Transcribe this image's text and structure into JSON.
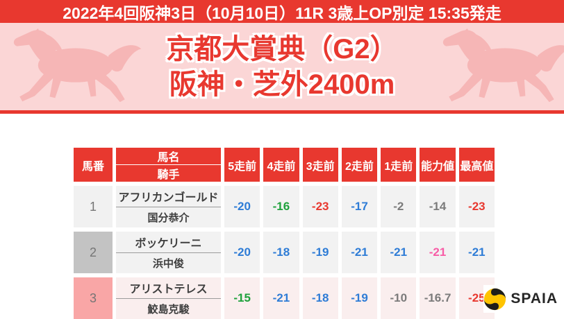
{
  "top_bar": {
    "text": "2022年4回阪神3日（10月10日）11R 3歳上OP別定 15:35発走"
  },
  "header": {
    "title_line1": "京都大賞典（G2）",
    "title_line2": "阪神・芝外2400m"
  },
  "table": {
    "header": {
      "horse_number": "馬番",
      "horse_name": "馬名",
      "jockey": "騎手",
      "run_columns": [
        "5走前",
        "4走前",
        "3走前",
        "2走前",
        "1走前",
        "能力値",
        "最高値"
      ]
    },
    "rows": [
      {
        "number": "1",
        "name": "アフリカンゴールド",
        "jockey": "国分恭介",
        "number_bg": "#f1f1f1",
        "row_bg": "#f2f2f2",
        "values": [
          {
            "v": "-20",
            "c": "blue"
          },
          {
            "v": "-16",
            "c": "green"
          },
          {
            "v": "-23",
            "c": "red"
          },
          {
            "v": "-17",
            "c": "blue"
          },
          {
            "v": "-2",
            "c": "gray"
          },
          {
            "v": "-14",
            "c": "gray"
          },
          {
            "v": "-23",
            "c": "red"
          }
        ]
      },
      {
        "number": "2",
        "name": "ボッケリーニ",
        "jockey": "浜中俊",
        "number_bg": "#c3c3c3",
        "row_bg": "#f2f2f2",
        "values": [
          {
            "v": "-20",
            "c": "blue"
          },
          {
            "v": "-18",
            "c": "blue"
          },
          {
            "v": "-19",
            "c": "blue"
          },
          {
            "v": "-21",
            "c": "blue"
          },
          {
            "v": "-21",
            "c": "blue"
          },
          {
            "v": "-21",
            "c": "pink"
          },
          {
            "v": "-21",
            "c": "blue"
          }
        ]
      },
      {
        "number": "3",
        "name": "アリストテレス",
        "jockey": "鮫島克駿",
        "number_bg": "#f9a6a6",
        "row_bg": "#faeeee",
        "values": [
          {
            "v": "-15",
            "c": "green"
          },
          {
            "v": "-21",
            "c": "blue"
          },
          {
            "v": "-18",
            "c": "blue"
          },
          {
            "v": "-19",
            "c": "blue"
          },
          {
            "v": "-10",
            "c": "gray"
          },
          {
            "v": "-16.7",
            "c": "gray"
          },
          {
            "v": "-25",
            "c": "red"
          }
        ]
      }
    ]
  },
  "logo": {
    "text": "SPAIA"
  },
  "colors": {
    "accent_red": "#e8382f",
    "banner_pink": "#fbd6d6",
    "horse_silhouette_pink": "#f6b6b6",
    "logo_yellow": "#ffc400",
    "value_colors": {
      "blue": "#2e7cd6",
      "green": "#1ea13c",
      "red": "#e8382f",
      "gray": "#7b7b7b",
      "pink": "#f85ca6"
    }
  },
  "chart_data": {
    "type": "table",
    "title": "京都大賞典（G2） 阪神・芝外2400m",
    "subtitle": "2022年4回阪神3日（10月10日）11R 3歳上OP別定 15:35発走",
    "columns": [
      "馬番",
      "馬名",
      "騎手",
      "5走前",
      "4走前",
      "3走前",
      "2走前",
      "1走前",
      "能力値",
      "最高値"
    ],
    "rows": [
      [
        "1",
        "アフリカンゴールド",
        "国分恭介",
        -20,
        -16,
        -23,
        -17,
        -2,
        -14,
        -23
      ],
      [
        "2",
        "ボッケリーニ",
        "浜中俊",
        -20,
        -18,
        -19,
        -21,
        -21,
        -21,
        -21
      ],
      [
        "3",
        "アリストテレス",
        "鮫島克駿",
        -15,
        -21,
        -18,
        -19,
        -10,
        -16.7,
        -25
      ]
    ]
  }
}
